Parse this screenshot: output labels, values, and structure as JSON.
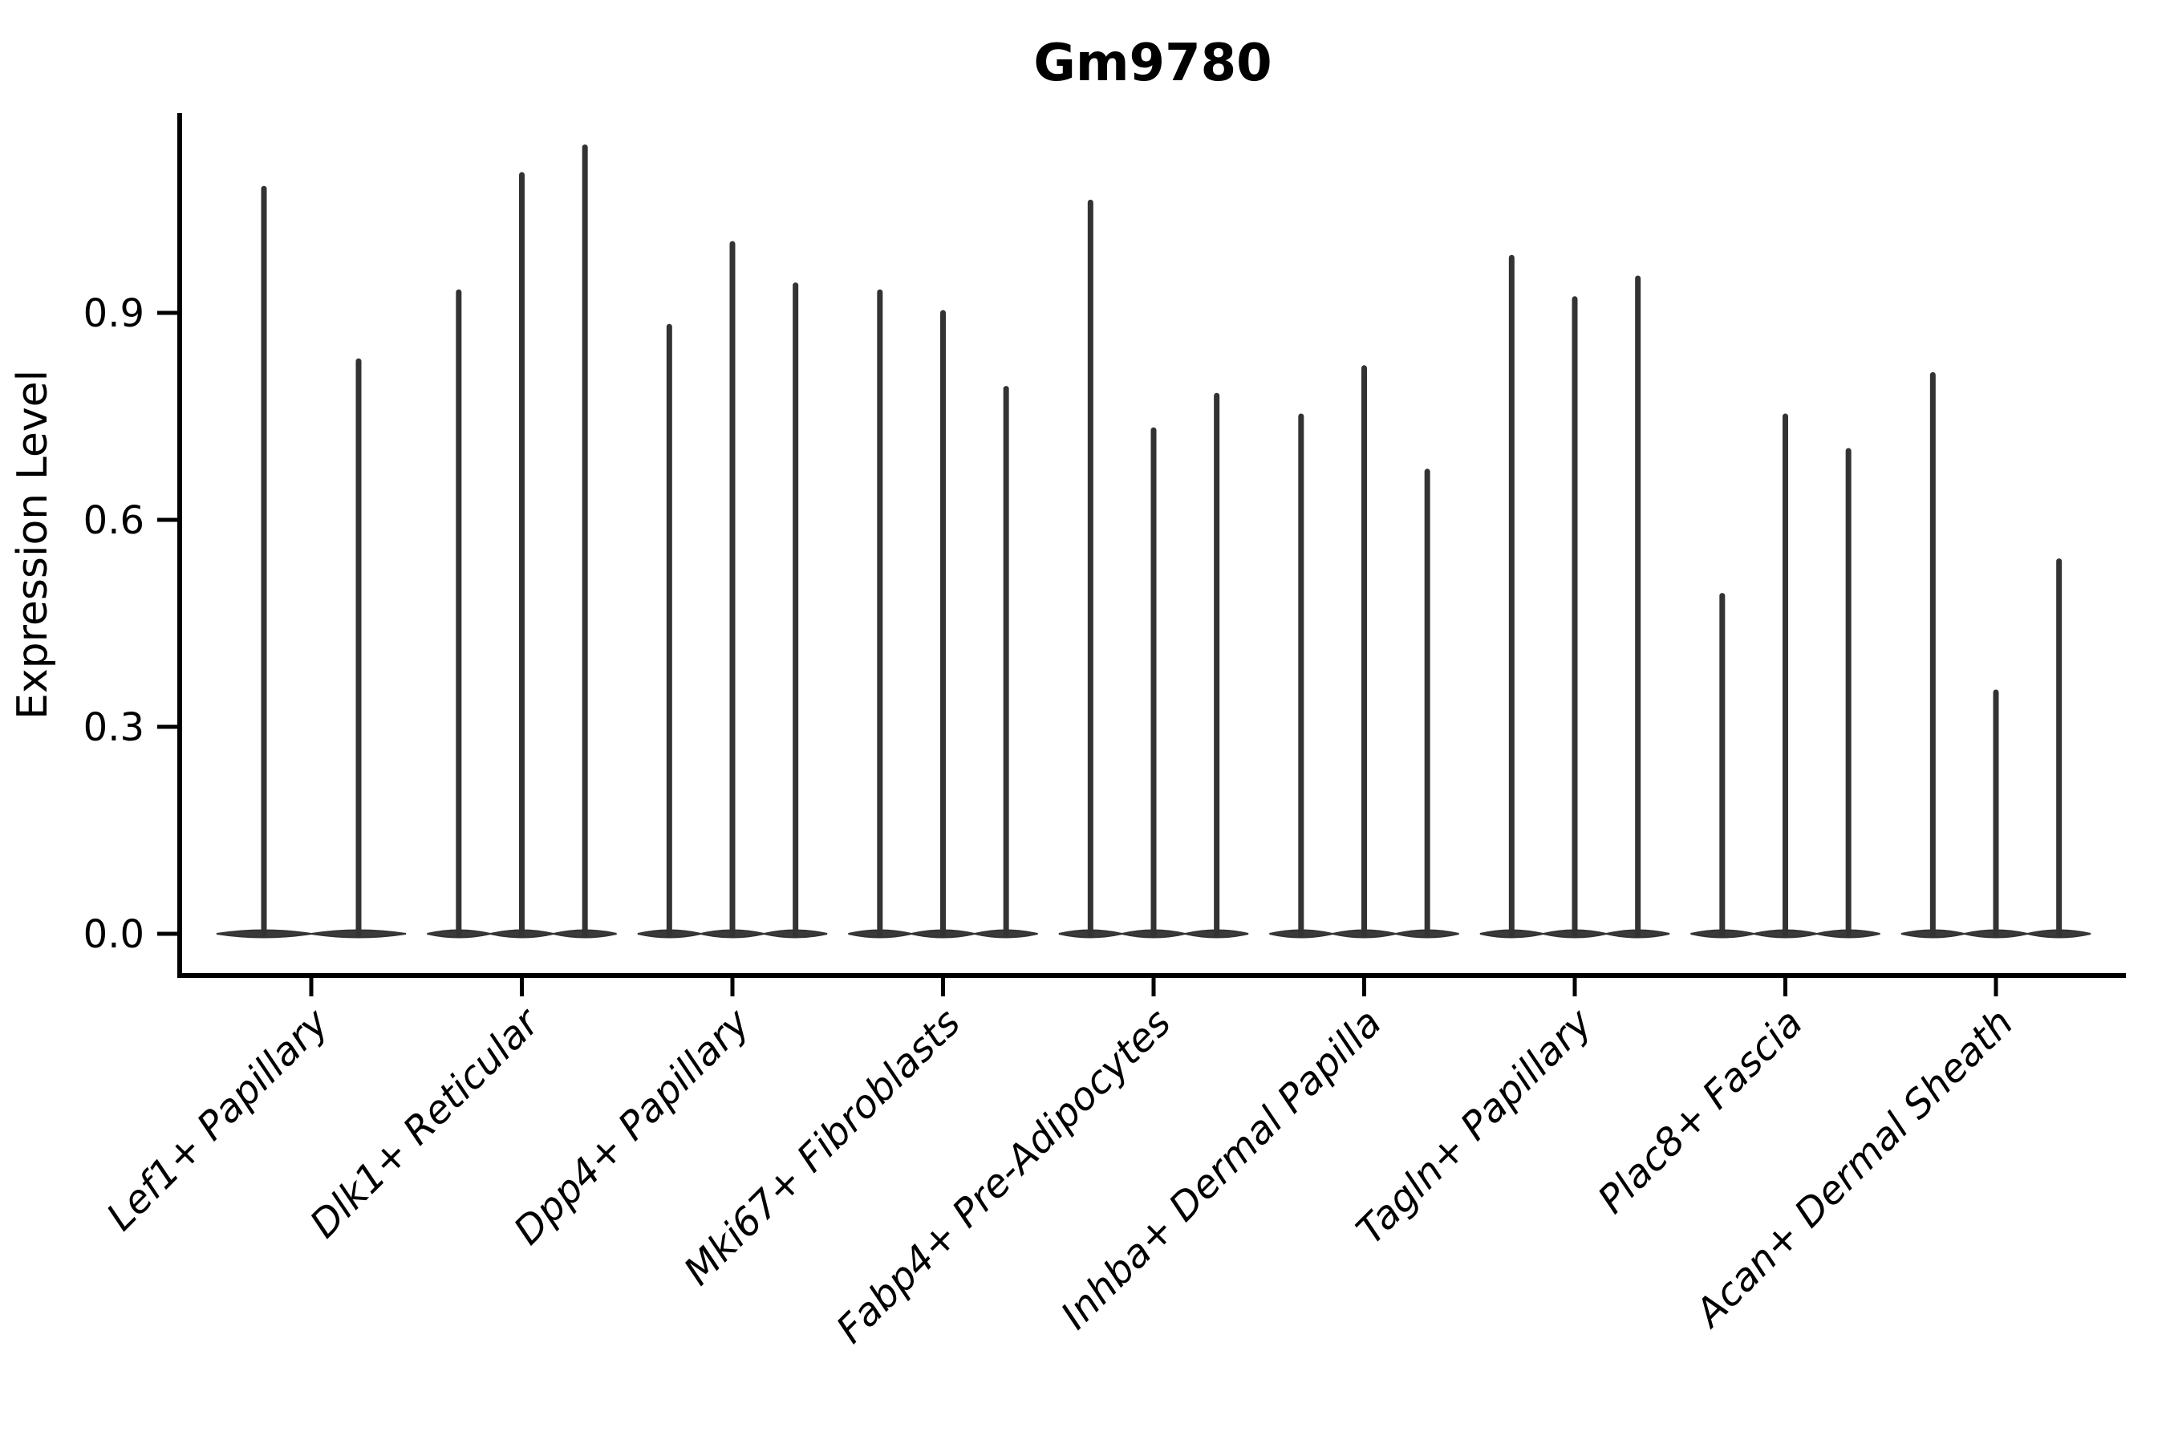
{
  "chart_data": {
    "type": "violin",
    "title": "Gm9780",
    "xlabel": "",
    "ylabel": "Expression Level",
    "ytick_labels": [
      "0.0",
      "0.3",
      "0.6",
      "0.9"
    ],
    "ytick_values": [
      0.0,
      0.3,
      0.6,
      0.9
    ],
    "ylim": [
      -0.06,
      1.19
    ],
    "grid": false,
    "legend": "none",
    "categories": [
      "Lef1+ Papillary",
      "Dlk1+ Reticular",
      "Dpp4+ Papillary",
      "Mki67+ Fibroblasts",
      "Fabp4+ Pre-Adipocytes",
      "Inhba+ Dermal Papilla",
      "Tagln+ Papillary",
      "Plac8+ Fascia",
      "Acan+ Dermal Sheath"
    ],
    "groups": [
      {
        "category": "Lef1+ Papillary",
        "violin_max_values": [
          1.08,
          0.83
        ]
      },
      {
        "category": "Dlk1+ Reticular",
        "violin_max_values": [
          0.93,
          1.1,
          1.14
        ]
      },
      {
        "category": "Dpp4+ Papillary",
        "violin_max_values": [
          0.88,
          1.0,
          0.94
        ]
      },
      {
        "category": "Mki67+ Fibroblasts",
        "violin_max_values": [
          0.93,
          0.9,
          0.79
        ]
      },
      {
        "category": "Fabp4+ Pre-Adipocytes",
        "violin_max_values": [
          1.06,
          0.73,
          0.78
        ]
      },
      {
        "category": "Inhba+ Dermal Papilla",
        "violin_max_values": [
          0.75,
          0.82,
          0.67
        ]
      },
      {
        "category": "Tagln+ Papillary",
        "violin_max_values": [
          0.98,
          0.92,
          0.95
        ]
      },
      {
        "category": "Plac8+ Fascia",
        "violin_max_values": [
          0.49,
          0.75,
          0.7
        ]
      },
      {
        "category": "Acan+ Dermal Sheath",
        "violin_max_values": [
          0.81,
          0.35,
          0.54
        ]
      }
    ],
    "violin_baseline_value": 0.0,
    "colors": {
      "violin": "#333333",
      "violin_fill": "#3a3a3a",
      "axis": "#000000",
      "text": "#000000",
      "background": "#ffffff"
    }
  }
}
